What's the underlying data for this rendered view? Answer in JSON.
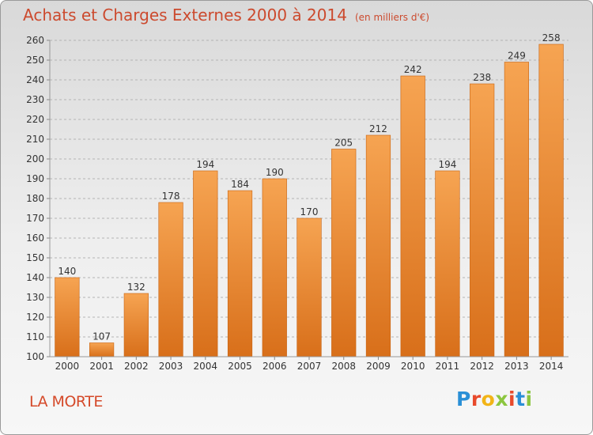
{
  "title": "Achats et Charges Externes 2000 à 2014",
  "subtitle": "(en milliers d'€)",
  "place_name": "LA MORTE",
  "logo": {
    "letters": [
      {
        "ch": "P",
        "color": "#2a8fd6"
      },
      {
        "ch": "r",
        "color": "#e84a2c"
      },
      {
        "ch": "o",
        "color": "#f2b417"
      },
      {
        "ch": "x",
        "color": "#8cc63f"
      },
      {
        "ch": "i",
        "color": "#e84a2c"
      },
      {
        "ch": "t",
        "color": "#2a8fd6"
      },
      {
        "ch": "i",
        "color": "#8cc63f"
      }
    ]
  },
  "colors": {
    "bar_light": "#f6a452",
    "bar_dark": "#d86f1a",
    "bar_edge": "#c8620f",
    "grid": "#b4b4b4",
    "axis_text": "#333333",
    "title": "#cc4a2e"
  },
  "chart_data": {
    "type": "bar",
    "categories": [
      "2000",
      "2001",
      "2002",
      "2003",
      "2004",
      "2005",
      "2006",
      "2007",
      "2008",
      "2009",
      "2010",
      "2011",
      "2012",
      "2013",
      "2014"
    ],
    "values": [
      140,
      107,
      132,
      178,
      194,
      184,
      190,
      170,
      205,
      212,
      242,
      194,
      238,
      249,
      258
    ],
    "ylim": [
      100,
      260
    ],
    "yticks": [
      100,
      110,
      120,
      130,
      140,
      150,
      160,
      170,
      180,
      190,
      200,
      210,
      220,
      230,
      240,
      250,
      260
    ],
    "grid": true,
    "data_labels": true
  }
}
